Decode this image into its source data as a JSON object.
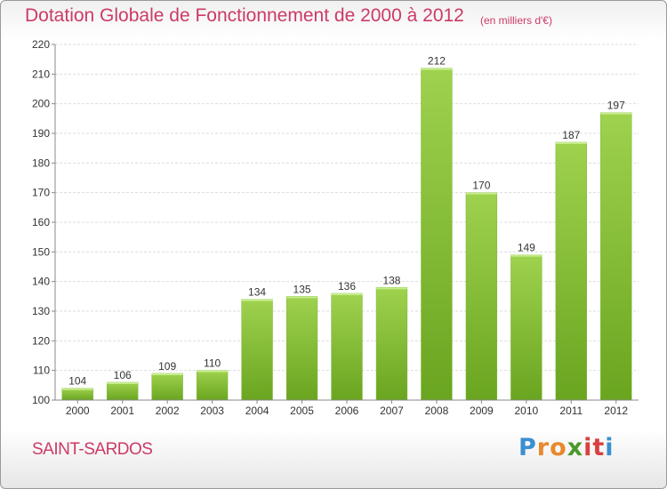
{
  "chart_data": {
    "type": "bar",
    "title": "Dotation Globale de Fonctionnement de 2000 à 2012",
    "unit": "(en milliers d'€)",
    "categories": [
      "2000",
      "2001",
      "2002",
      "2003",
      "2004",
      "2005",
      "2006",
      "2007",
      "2008",
      "2009",
      "2010",
      "2011",
      "2012"
    ],
    "values": [
      104,
      106,
      109,
      110,
      134,
      135,
      136,
      138,
      212,
      170,
      149,
      187,
      197
    ],
    "ylim": [
      100,
      220
    ],
    "yticks": [
      100,
      110,
      120,
      130,
      140,
      150,
      160,
      170,
      180,
      190,
      200,
      210,
      220
    ],
    "grid": true,
    "bar_color": "#8cc63f"
  },
  "commune": "SAINT-SARDOS",
  "logo": {
    "letters": [
      "P",
      "r",
      "o",
      "x",
      "i",
      "t",
      "i"
    ],
    "colors": [
      "#3a8fd0",
      "#e8892b",
      "#e8892b",
      "#4a9a2a",
      "#d94040",
      "#d94040",
      "#3a8fd0"
    ]
  }
}
